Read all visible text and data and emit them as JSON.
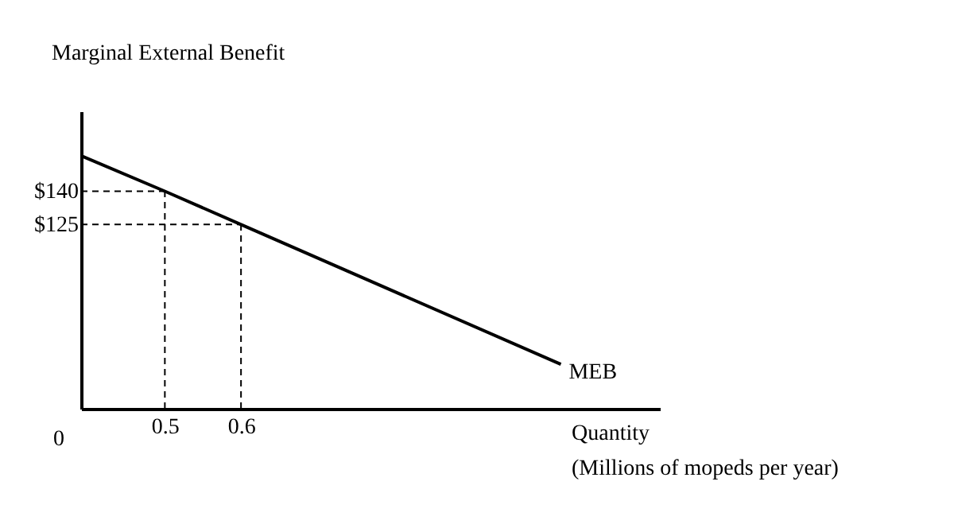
{
  "chart_data": {
    "type": "line",
    "ylabel": "Marginal External Benefit",
    "xlabel": "Quantity\n(Millions of mopeds per year)",
    "x": [
      0.39,
      0.5,
      0.6,
      1.02
    ],
    "series": [
      {
        "name": "MEB",
        "color": "#000000",
        "values": [
          156,
          140,
          125,
          62
        ]
      }
    ],
    "xlim": [
      0.39,
      1.15
    ],
    "xticks": [
      0.5,
      0.6
    ],
    "ylim": [
      42,
      176
    ],
    "yticks": [
      {
        "value": 125,
        "label": "$125"
      },
      {
        "value": 140,
        "label": "$140"
      }
    ],
    "ref_lines": [
      {
        "axis": "x",
        "value": 0.5,
        "line_style": "dashed"
      },
      {
        "axis": "x",
        "value": 0.6,
        "line_style": "dashed"
      },
      {
        "axis": "y",
        "value": 140,
        "line_style": "dashed"
      },
      {
        "axis": "y",
        "value": 125,
        "line_style": "dashed"
      }
    ],
    "annotations": [
      "0"
    ],
    "grid": false,
    "legend": false,
    "marker": "none",
    "line_style": "solid"
  }
}
